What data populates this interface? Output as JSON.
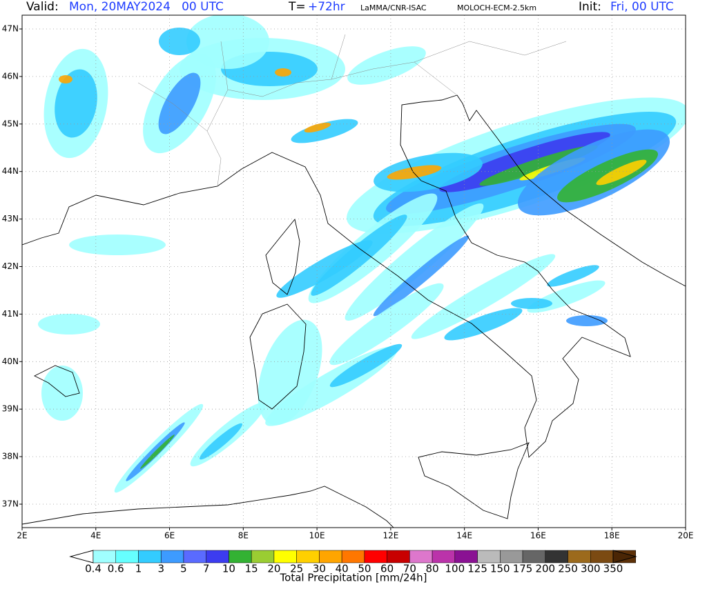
{
  "header": {
    "valid_label": "Valid:",
    "valid": "Mon, 20MAY2024   00 UTC",
    "t_label": "T=",
    "t": "+72hr",
    "source": "LaMMA/CNR-ISAC",
    "model": "MOLOCH-ECM-2.5km",
    "init_label": "Init:",
    "init": "Fri, 00 UTC"
  },
  "map": {
    "lat_labels": [
      "47N",
      "46N",
      "45N",
      "44N",
      "43N",
      "42N",
      "41N",
      "40N",
      "39N",
      "38N",
      "37N"
    ],
    "lon_labels": [
      "2E",
      "4E",
      "6E",
      "8E",
      "10E",
      "12E",
      "14E",
      "16E",
      "18E",
      "20E"
    ]
  },
  "colorbar": {
    "labels": [
      "0.4",
      "0.6",
      "1",
      "3",
      "5",
      "7",
      "10",
      "15",
      "20",
      "25",
      "30",
      "40",
      "50",
      "60",
      "70",
      "80",
      "100",
      "125",
      "150",
      "175",
      "200",
      "250",
      "300",
      "350"
    ],
    "colors": [
      "#ffffff",
      "#a0ffff",
      "#66ffff",
      "#33ccff",
      "#3d9bff",
      "#5a6bff",
      "#3c3cf0",
      "#33b233",
      "#9acd32",
      "#ffff00",
      "#ffd000",
      "#ffa500",
      "#ff7700",
      "#ff0000",
      "#c80000",
      "#dd77cc",
      "#bb33aa",
      "#8a1193",
      "#bbbbbb",
      "#999999",
      "#666666",
      "#333333",
      "#9c6a1c",
      "#7b4a12",
      "#5d3108",
      "#4a2605"
    ],
    "title": "Total Precipitation [mm/24h]"
  }
}
